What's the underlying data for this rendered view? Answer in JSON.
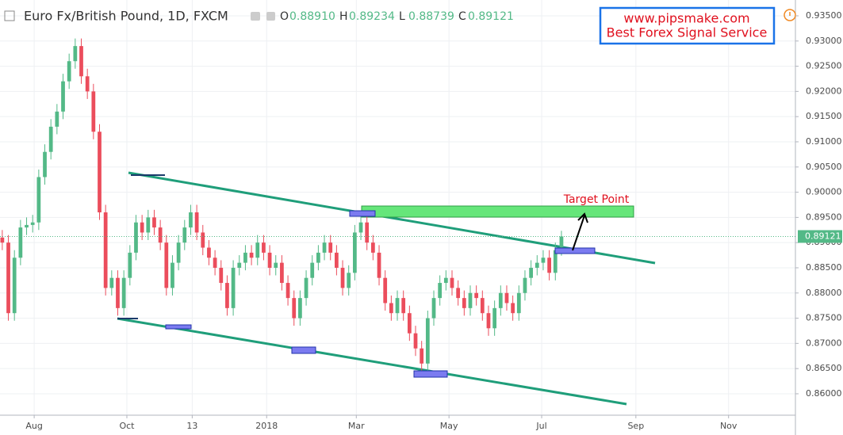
{
  "chart_data": {
    "type": "candlestick",
    "title": "Euro Fx/British Pound, 1D, FXCM",
    "ohlc_labels": [
      {
        "label": "O",
        "value": "0.88910"
      },
      {
        "label": "H",
        "value": "0.89234"
      },
      {
        "label": "L",
        "value": "0.88739"
      },
      {
        "label": "C",
        "value": "0.89121"
      }
    ],
    "up_color": "#53b987",
    "down_color": "#eb4d5c",
    "grid": true,
    "xlim": [
      8.5,
      532
    ],
    "xticks": [
      {
        "value": 31,
        "label": "Aug"
      },
      {
        "value": 92,
        "label": "Oct"
      },
      {
        "value": 135,
        "label": "13"
      },
      {
        "value": 184,
        "label": "2018"
      },
      {
        "value": 243,
        "label": "Mar"
      },
      {
        "value": 304,
        "label": "May"
      },
      {
        "value": 365,
        "label": "Jul"
      },
      {
        "value": 427,
        "label": "Sep"
      },
      {
        "value": 488,
        "label": "Nov"
      }
    ],
    "ylim": [
      0.85575,
      0.93814
    ],
    "yticks": [
      {
        "value": 0.86,
        "label": "0.86000"
      },
      {
        "value": 0.865,
        "label": "0.86500"
      },
      {
        "value": 0.87,
        "label": "0.87000"
      },
      {
        "value": 0.875,
        "label": "0.87500"
      },
      {
        "value": 0.88,
        "label": "0.88000"
      },
      {
        "value": 0.885,
        "label": "0.88500"
      },
      {
        "value": 0.89,
        "label": "0.89000"
      },
      {
        "value": 0.895,
        "label": "0.89500"
      },
      {
        "value": 0.9,
        "label": "0.90000"
      },
      {
        "value": 0.905,
        "label": "0.90500"
      },
      {
        "value": 0.91,
        "label": "0.91000"
      },
      {
        "value": 0.915,
        "label": "0.91500"
      },
      {
        "value": 0.92,
        "label": "0.92000"
      },
      {
        "value": 0.925,
        "label": "0.92500"
      },
      {
        "value": 0.93,
        "label": "0.93000"
      },
      {
        "value": 0.935,
        "label": "0.93500"
      }
    ],
    "last_price": {
      "value": 0.89121,
      "label": "0.89121"
    },
    "x": [
      10,
      14,
      18,
      22,
      26,
      30,
      34,
      38,
      42,
      46,
      50,
      54,
      58,
      62,
      66,
      70,
      74,
      78,
      82,
      86,
      90,
      94,
      98,
      102,
      106,
      110,
      114,
      118,
      122,
      126,
      130,
      134,
      138,
      142,
      146,
      150,
      154,
      158,
      162,
      166,
      170,
      174,
      178,
      182,
      186,
      190,
      194,
      198,
      202,
      206,
      210,
      214,
      218,
      222,
      226,
      230,
      234,
      238,
      242,
      246,
      250,
      254,
      258,
      262,
      266,
      270,
      274,
      278,
      282,
      286,
      290,
      294,
      298,
      302,
      306,
      310,
      314,
      318,
      322,
      326,
      330,
      334,
      338,
      342,
      346,
      350,
      354,
      358,
      362,
      366,
      370,
      374,
      378
    ],
    "open": [
      0.891,
      0.89,
      0.876,
      0.887,
      0.893,
      0.8935,
      0.894,
      0.903,
      0.908,
      0.913,
      0.916,
      0.922,
      0.926,
      0.929,
      0.923,
      0.92,
      0.912,
      0.896,
      0.881,
      0.883,
      0.877,
      0.883,
      0.888,
      0.894,
      0.892,
      0.895,
      0.893,
      0.89,
      0.881,
      0.886,
      0.89,
      0.893,
      0.896,
      0.892,
      0.889,
      0.887,
      0.885,
      0.882,
      0.877,
      0.885,
      0.886,
      0.888,
      0.887,
      0.89,
      0.888,
      0.885,
      0.886,
      0.882,
      0.879,
      0.875,
      0.879,
      0.883,
      0.886,
      0.888,
      0.89,
      0.888,
      0.885,
      0.881,
      0.884,
      0.892,
      0.894,
      0.89,
      0.888,
      0.883,
      0.878,
      0.876,
      0.879,
      0.876,
      0.872,
      0.869,
      0.866,
      0.875,
      0.879,
      0.882,
      0.883,
      0.881,
      0.879,
      0.877,
      0.88,
      0.879,
      0.876,
      0.873,
      0.877,
      0.88,
      0.878,
      0.876,
      0.88,
      0.883,
      0.885,
      0.886,
      0.887,
      0.884,
      0.8891
    ],
    "high": [
      0.8925,
      0.8915,
      0.8885,
      0.8945,
      0.895,
      0.8955,
      0.9045,
      0.9095,
      0.9145,
      0.9175,
      0.9235,
      0.9275,
      0.9305,
      0.9305,
      0.9245,
      0.9215,
      0.9135,
      0.8975,
      0.8845,
      0.8845,
      0.8845,
      0.8895,
      0.8955,
      0.8955,
      0.8965,
      0.8965,
      0.8945,
      0.8915,
      0.8875,
      0.8915,
      0.8945,
      0.8975,
      0.8975,
      0.8935,
      0.8905,
      0.8885,
      0.8865,
      0.8835,
      0.8865,
      0.8875,
      0.8895,
      0.8895,
      0.8915,
      0.8915,
      0.8895,
      0.8875,
      0.8875,
      0.8835,
      0.8805,
      0.8805,
      0.8845,
      0.8875,
      0.8895,
      0.8915,
      0.8915,
      0.8895,
      0.8865,
      0.8855,
      0.8935,
      0.8955,
      0.8955,
      0.8915,
      0.8895,
      0.8845,
      0.8795,
      0.8805,
      0.8805,
      0.8775,
      0.8735,
      0.8705,
      0.8765,
      0.8805,
      0.8835,
      0.8845,
      0.8845,
      0.8825,
      0.8805,
      0.8815,
      0.8815,
      0.8805,
      0.8775,
      0.8785,
      0.8815,
      0.8815,
      0.8795,
      0.8815,
      0.8845,
      0.8865,
      0.8875,
      0.8885,
      0.8885,
      0.89,
      0.89234
    ],
    "low": [
      0.8885,
      0.8745,
      0.8745,
      0.8855,
      0.8915,
      0.892,
      0.8925,
      0.9015,
      0.9065,
      0.9115,
      0.9145,
      0.9205,
      0.9245,
      0.9215,
      0.9185,
      0.9105,
      0.8945,
      0.8795,
      0.8795,
      0.8755,
      0.8755,
      0.8815,
      0.8865,
      0.8905,
      0.8905,
      0.8915,
      0.8885,
      0.8795,
      0.8795,
      0.8845,
      0.8885,
      0.8915,
      0.8905,
      0.8875,
      0.8855,
      0.8835,
      0.8805,
      0.8755,
      0.8755,
      0.8835,
      0.8845,
      0.8855,
      0.8855,
      0.8865,
      0.8835,
      0.8835,
      0.8805,
      0.8775,
      0.8735,
      0.8735,
      0.8775,
      0.8815,
      0.8845,
      0.8865,
      0.8865,
      0.8835,
      0.8795,
      0.8795,
      0.8825,
      0.8905,
      0.8885,
      0.8865,
      0.8815,
      0.8765,
      0.8745,
      0.8745,
      0.8745,
      0.8705,
      0.8675,
      0.8645,
      0.8645,
      0.8735,
      0.8775,
      0.8805,
      0.8795,
      0.8775,
      0.8755,
      0.8755,
      0.8775,
      0.8745,
      0.8715,
      0.8715,
      0.8755,
      0.8765,
      0.8745,
      0.8745,
      0.8785,
      0.8815,
      0.8835,
      0.8845,
      0.8825,
      0.8825,
      0.88739
    ],
    "close": [
      0.89,
      0.876,
      0.887,
      0.893,
      0.8935,
      0.894,
      0.903,
      0.908,
      0.913,
      0.916,
      0.922,
      0.926,
      0.929,
      0.923,
      0.92,
      0.912,
      0.896,
      0.881,
      0.883,
      0.877,
      0.883,
      0.888,
      0.894,
      0.892,
      0.895,
      0.893,
      0.89,
      0.881,
      0.886,
      0.89,
      0.893,
      0.896,
      0.892,
      0.889,
      0.887,
      0.885,
      0.882,
      0.877,
      0.885,
      0.886,
      0.888,
      0.887,
      0.89,
      0.888,
      0.885,
      0.886,
      0.882,
      0.879,
      0.875,
      0.879,
      0.883,
      0.886,
      0.888,
      0.89,
      0.888,
      0.885,
      0.881,
      0.884,
      0.892,
      0.894,
      0.89,
      0.888,
      0.883,
      0.878,
      0.876,
      0.879,
      0.876,
      0.872,
      0.869,
      0.866,
      0.875,
      0.879,
      0.882,
      0.883,
      0.881,
      0.879,
      0.877,
      0.88,
      0.879,
      0.876,
      0.873,
      0.877,
      0.88,
      0.878,
      0.876,
      0.88,
      0.883,
      0.885,
      0.886,
      0.887,
      0.884,
      0.8885,
      0.89121
    ],
    "annotations": {
      "target": "Target Point",
      "watermark": [
        "www.pipsmake.com",
        "Best Forex Signal Service"
      ]
    }
  }
}
